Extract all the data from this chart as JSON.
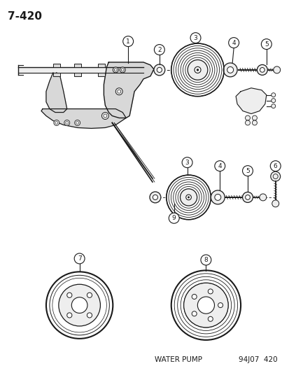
{
  "title": "7-420",
  "footer_left": "WATER PUMP",
  "footer_right": "94J07  420",
  "bg_color": "#ffffff",
  "line_color": "#1a1a1a",
  "gray_fill": "#d8d8d8",
  "light_gray": "#eeeeee"
}
